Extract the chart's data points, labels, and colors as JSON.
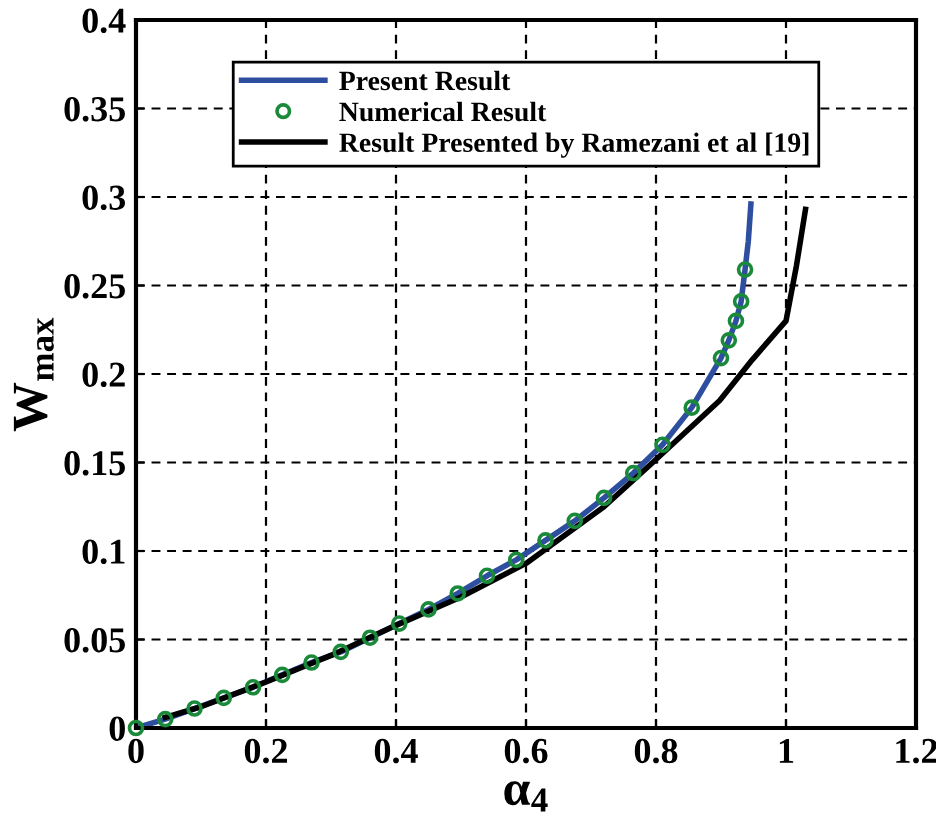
{
  "chart_data": {
    "type": "line",
    "xlabel": "α$_{4}$",
    "ylabel": "W$_{max}$",
    "xlim": [
      0,
      1.2
    ],
    "xticks": [
      0,
      0.2,
      0.4,
      0.6,
      0.8,
      1,
      1.2
    ],
    "ylim": [
      0,
      0.4
    ],
    "yticks": [
      0,
      0.05,
      0.1,
      0.15,
      0.2,
      0.25,
      0.3,
      0.35,
      0.4
    ],
    "grid": true,
    "legend": "top",
    "series": [
      {
        "name": "Present Result",
        "color": "#2e4fa0",
        "x": [
          0,
          0.045,
          0.09,
          0.135,
          0.18,
          0.225,
          0.27,
          0.315,
          0.36,
          0.405,
          0.45,
          0.495,
          0.54,
          0.585,
          0.63,
          0.675,
          0.72,
          0.765,
          0.81,
          0.855,
          0.9,
          0.912,
          0.923,
          0.931,
          0.937,
          0.942,
          0.946
        ],
        "values": [
          0,
          0.005,
          0.011,
          0.017,
          0.023,
          0.03,
          0.037,
          0.043,
          0.051,
          0.059,
          0.067,
          0.076,
          0.086,
          0.095,
          0.106,
          0.117,
          0.13,
          0.144,
          0.16,
          0.181,
          0.209,
          0.219,
          0.23,
          0.241,
          0.259,
          0.275,
          0.296
        ]
      },
      {
        "name": "Numerical Result",
        "type": "scatter",
        "marker": "circle",
        "color": "#1a8a3a",
        "x": [
          0,
          0.045,
          0.09,
          0.135,
          0.18,
          0.225,
          0.27,
          0.315,
          0.36,
          0.405,
          0.45,
          0.495,
          0.54,
          0.585,
          0.63,
          0.675,
          0.72,
          0.765,
          0.81,
          0.855,
          0.9,
          0.912,
          0.923,
          0.931,
          0.937
        ],
        "values": [
          0,
          0.005,
          0.011,
          0.017,
          0.023,
          0.03,
          0.037,
          0.043,
          0.051,
          0.059,
          0.067,
          0.076,
          0.086,
          0.095,
          0.106,
          0.117,
          0.13,
          0.144,
          0.16,
          0.181,
          0.209,
          0.219,
          0.23,
          0.241,
          0.259
        ]
      },
      {
        "name": "Result Presented by Ramezani et al [19]",
        "color": "#000000",
        "x": [
          0.045,
          0.1,
          0.2,
          0.3,
          0.4,
          0.5,
          0.6,
          0.72,
          0.795,
          0.898,
          0.948,
          1.0,
          1.016,
          1.03
        ],
        "values": [
          0.006,
          0.012,
          0.026,
          0.041,
          0.058,
          0.074,
          0.093,
          0.125,
          0.15,
          0.185,
          0.208,
          0.23,
          0.261,
          0.293
        ]
      }
    ]
  }
}
